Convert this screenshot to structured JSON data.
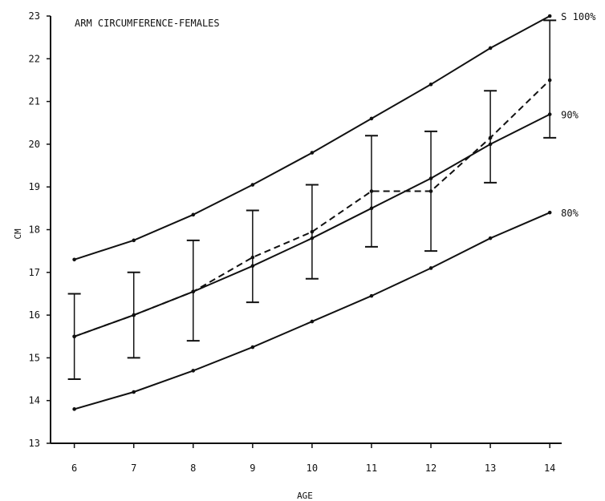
{
  "chart_data": {
    "type": "line",
    "title": "ARM CIRCUMFERENCE-FEMALES",
    "xlabel": "AGE",
    "ylabel": "CM",
    "x": [
      6,
      7,
      8,
      9,
      10,
      11,
      12,
      13,
      14
    ],
    "xlim": [
      5.6,
      14.2
    ],
    "ylim": [
      13,
      23
    ],
    "xticks": [
      6,
      7,
      8,
      9,
      10,
      11,
      12,
      13,
      14
    ],
    "yticks": [
      13,
      14,
      15,
      16,
      17,
      18,
      19,
      20,
      21,
      22,
      23
    ],
    "grid": false,
    "series": [
      {
        "name": "S 100%",
        "style": "solid",
        "color": "#111111",
        "values": [
          17.3,
          17.75,
          18.35,
          19.05,
          19.8,
          20.6,
          21.4,
          22.25,
          23.0
        ]
      },
      {
        "name": "90%",
        "style": "solid",
        "color": "#111111",
        "values": [
          15.5,
          16.0,
          16.55,
          17.15,
          17.8,
          18.5,
          19.2,
          20.0,
          20.7
        ]
      },
      {
        "name": "80%",
        "style": "solid",
        "color": "#111111",
        "values": [
          13.8,
          14.2,
          14.7,
          15.25,
          15.85,
          16.45,
          17.1,
          17.8,
          18.4
        ]
      },
      {
        "name": "",
        "style": "dashed",
        "color": "#111111",
        "values": [
          15.5,
          16.0,
          16.55,
          17.35,
          17.95,
          18.9,
          18.9,
          20.15,
          21.5
        ],
        "error_bars": [
          [
            14.5,
            16.5
          ],
          [
            15.0,
            17.0
          ],
          [
            15.4,
            17.75
          ],
          [
            16.3,
            18.45
          ],
          [
            16.85,
            19.05
          ],
          [
            17.6,
            20.2
          ],
          [
            17.5,
            20.3
          ],
          [
            19.1,
            21.25
          ],
          [
            20.15,
            22.9
          ]
        ]
      }
    ]
  }
}
